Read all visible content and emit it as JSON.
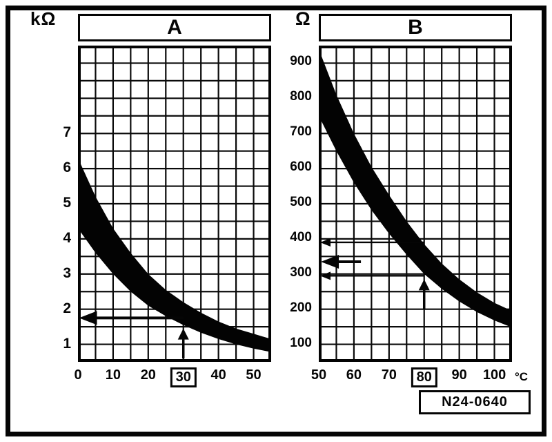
{
  "figure": {
    "ref_label": "N24-0640"
  },
  "chart_data": [
    {
      "id": "A",
      "type": "area",
      "title": "A",
      "y_unit": "kΩ",
      "x_range": [
        0,
        55
      ],
      "y_range": [
        0.5,
        9.5
      ],
      "x_grid_step": 5,
      "y_grid_step": 0.5,
      "x_ticks": [
        {
          "value": 0,
          "label": "0"
        },
        {
          "value": 10,
          "label": "10"
        },
        {
          "value": 20,
          "label": "20"
        },
        {
          "value": 30,
          "label": "30",
          "boxed": true
        },
        {
          "value": 40,
          "label": "40"
        },
        {
          "value": 50,
          "label": "50"
        }
      ],
      "y_ticks": [
        {
          "value": 7,
          "label": "7"
        },
        {
          "value": 6,
          "label": "6"
        },
        {
          "value": 5,
          "label": "5"
        },
        {
          "value": 4,
          "label": "4"
        },
        {
          "value": 3,
          "label": "3"
        },
        {
          "value": 2,
          "label": "2"
        },
        {
          "value": 1,
          "label": "1"
        }
      ],
      "band": {
        "x": [
          0,
          5,
          10,
          15,
          20,
          25,
          30,
          35,
          40,
          45,
          50,
          55
        ],
        "upper": [
          6.3,
          5.2,
          4.3,
          3.6,
          3.0,
          2.55,
          2.2,
          1.9,
          1.65,
          1.45,
          1.3,
          1.15
        ],
        "lower": [
          4.3,
          3.6,
          3.0,
          2.5,
          2.1,
          1.8,
          1.55,
          1.33,
          1.15,
          1.0,
          0.88,
          0.78
        ]
      },
      "annotations": {
        "h_arrows": [
          {
            "y": 1.75,
            "x1": 0.3,
            "x2": 30,
            "head": "big"
          }
        ],
        "v_arrows": [
          {
            "x": 30,
            "y1": 0.6,
            "y2": 1.45
          }
        ]
      }
    },
    {
      "id": "B",
      "type": "area",
      "title": "B",
      "y_unit": "Ω",
      "x_axis_unit": "°C",
      "x_range": [
        50,
        105
      ],
      "y_range": [
        50,
        950
      ],
      "x_grid_step": 5,
      "y_grid_step": 50,
      "x_ticks": [
        {
          "value": 50,
          "label": "50"
        },
        {
          "value": 60,
          "label": "60"
        },
        {
          "value": 70,
          "label": "70"
        },
        {
          "value": 80,
          "label": "80",
          "boxed": true
        },
        {
          "value": 90,
          "label": "90"
        },
        {
          "value": 100,
          "label": "100"
        }
      ],
      "y_ticks": [
        {
          "value": 900,
          "label": "900"
        },
        {
          "value": 800,
          "label": "800"
        },
        {
          "value": 700,
          "label": "700"
        },
        {
          "value": 600,
          "label": "600"
        },
        {
          "value": 500,
          "label": "500"
        },
        {
          "value": 400,
          "label": "400"
        },
        {
          "value": 300,
          "label": "300"
        },
        {
          "value": 200,
          "label": "200"
        },
        {
          "value": 100,
          "label": "100"
        }
      ],
      "band": {
        "x": [
          50,
          55,
          60,
          65,
          70,
          75,
          80,
          85,
          90,
          95,
          100,
          105
        ],
        "upper": [
          940,
          810,
          700,
          605,
          525,
          450,
          385,
          330,
          285,
          248,
          218,
          195
        ],
        "lower": [
          750,
          650,
          560,
          482,
          415,
          355,
          300,
          258,
          222,
          192,
          168,
          148
        ]
      },
      "annotations": {
        "h_arrows": [
          {
            "y": 390,
            "x1": 50.4,
            "x2": 80,
            "head": "small"
          },
          {
            "y": 335,
            "x1": 50.6,
            "x2": 62,
            "head": "big"
          },
          {
            "y": 295,
            "x1": 50.4,
            "x2": 80,
            "head": "small"
          }
        ],
        "v_arrows": [
          {
            "x": 80,
            "y1": 200,
            "y2": 285
          }
        ]
      }
    }
  ]
}
